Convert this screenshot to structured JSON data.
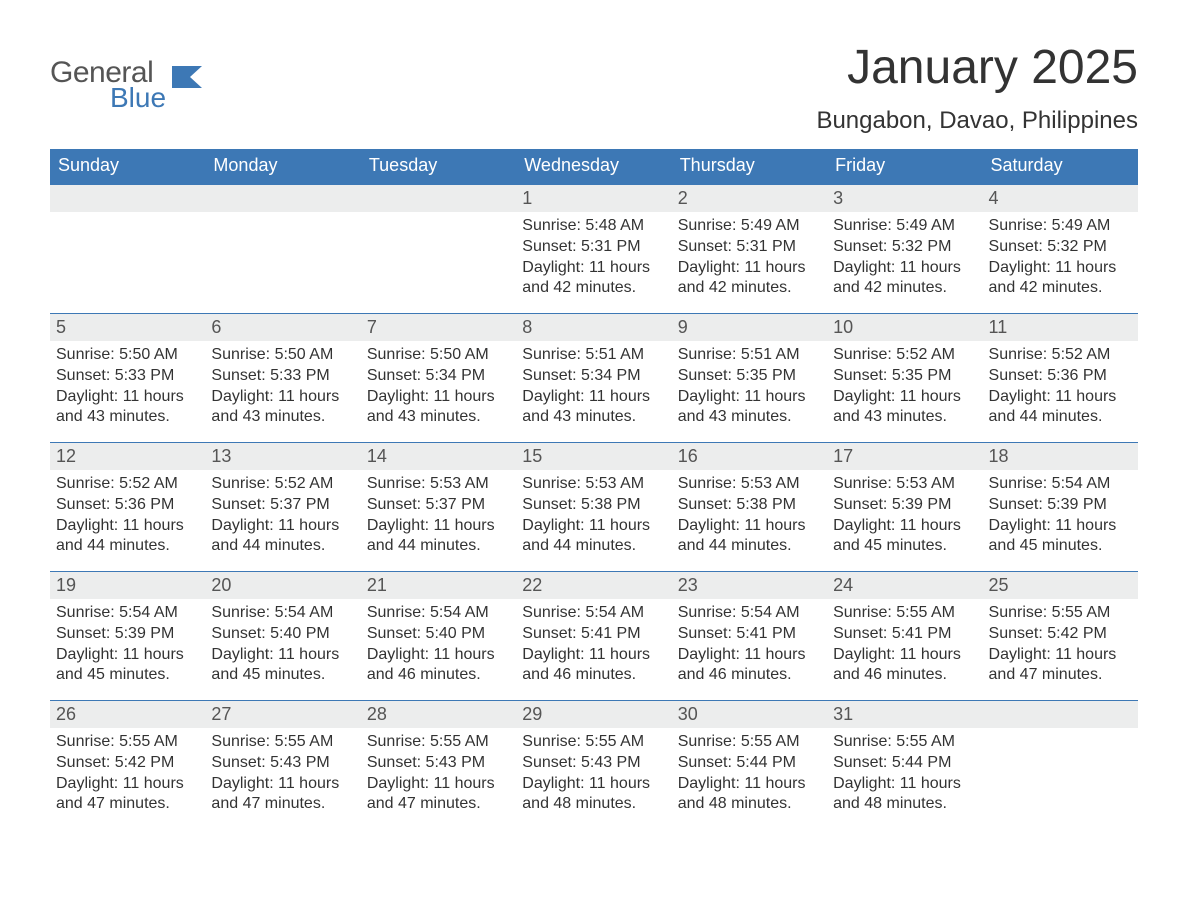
{
  "logo": {
    "general": "General",
    "blue": "Blue"
  },
  "title": "January 2025",
  "location": "Bungabon, Davao, Philippines",
  "colors": {
    "header_blue": "#3d78b5",
    "daynum_bg": "#eceded",
    "text": "#333333",
    "logo_gray": "#555555"
  },
  "weekdays": [
    "Sunday",
    "Monday",
    "Tuesday",
    "Wednesday",
    "Thursday",
    "Friday",
    "Saturday"
  ],
  "weeks": [
    [
      null,
      null,
      null,
      {
        "n": "1",
        "sr": "Sunrise: 5:48 AM",
        "ss": "Sunset: 5:31 PM",
        "dl": "Daylight: 11 hours and 42 minutes."
      },
      {
        "n": "2",
        "sr": "Sunrise: 5:49 AM",
        "ss": "Sunset: 5:31 PM",
        "dl": "Daylight: 11 hours and 42 minutes."
      },
      {
        "n": "3",
        "sr": "Sunrise: 5:49 AM",
        "ss": "Sunset: 5:32 PM",
        "dl": "Daylight: 11 hours and 42 minutes."
      },
      {
        "n": "4",
        "sr": "Sunrise: 5:49 AM",
        "ss": "Sunset: 5:32 PM",
        "dl": "Daylight: 11 hours and 42 minutes."
      }
    ],
    [
      {
        "n": "5",
        "sr": "Sunrise: 5:50 AM",
        "ss": "Sunset: 5:33 PM",
        "dl": "Daylight: 11 hours and 43 minutes."
      },
      {
        "n": "6",
        "sr": "Sunrise: 5:50 AM",
        "ss": "Sunset: 5:33 PM",
        "dl": "Daylight: 11 hours and 43 minutes."
      },
      {
        "n": "7",
        "sr": "Sunrise: 5:50 AM",
        "ss": "Sunset: 5:34 PM",
        "dl": "Daylight: 11 hours and 43 minutes."
      },
      {
        "n": "8",
        "sr": "Sunrise: 5:51 AM",
        "ss": "Sunset: 5:34 PM",
        "dl": "Daylight: 11 hours and 43 minutes."
      },
      {
        "n": "9",
        "sr": "Sunrise: 5:51 AM",
        "ss": "Sunset: 5:35 PM",
        "dl": "Daylight: 11 hours and 43 minutes."
      },
      {
        "n": "10",
        "sr": "Sunrise: 5:52 AM",
        "ss": "Sunset: 5:35 PM",
        "dl": "Daylight: 11 hours and 43 minutes."
      },
      {
        "n": "11",
        "sr": "Sunrise: 5:52 AM",
        "ss": "Sunset: 5:36 PM",
        "dl": "Daylight: 11 hours and 44 minutes."
      }
    ],
    [
      {
        "n": "12",
        "sr": "Sunrise: 5:52 AM",
        "ss": "Sunset: 5:36 PM",
        "dl": "Daylight: 11 hours and 44 minutes."
      },
      {
        "n": "13",
        "sr": "Sunrise: 5:52 AM",
        "ss": "Sunset: 5:37 PM",
        "dl": "Daylight: 11 hours and 44 minutes."
      },
      {
        "n": "14",
        "sr": "Sunrise: 5:53 AM",
        "ss": "Sunset: 5:37 PM",
        "dl": "Daylight: 11 hours and 44 minutes."
      },
      {
        "n": "15",
        "sr": "Sunrise: 5:53 AM",
        "ss": "Sunset: 5:38 PM",
        "dl": "Daylight: 11 hours and 44 minutes."
      },
      {
        "n": "16",
        "sr": "Sunrise: 5:53 AM",
        "ss": "Sunset: 5:38 PM",
        "dl": "Daylight: 11 hours and 44 minutes."
      },
      {
        "n": "17",
        "sr": "Sunrise: 5:53 AM",
        "ss": "Sunset: 5:39 PM",
        "dl": "Daylight: 11 hours and 45 minutes."
      },
      {
        "n": "18",
        "sr": "Sunrise: 5:54 AM",
        "ss": "Sunset: 5:39 PM",
        "dl": "Daylight: 11 hours and 45 minutes."
      }
    ],
    [
      {
        "n": "19",
        "sr": "Sunrise: 5:54 AM",
        "ss": "Sunset: 5:39 PM",
        "dl": "Daylight: 11 hours and 45 minutes."
      },
      {
        "n": "20",
        "sr": "Sunrise: 5:54 AM",
        "ss": "Sunset: 5:40 PM",
        "dl": "Daylight: 11 hours and 45 minutes."
      },
      {
        "n": "21",
        "sr": "Sunrise: 5:54 AM",
        "ss": "Sunset: 5:40 PM",
        "dl": "Daylight: 11 hours and 46 minutes."
      },
      {
        "n": "22",
        "sr": "Sunrise: 5:54 AM",
        "ss": "Sunset: 5:41 PM",
        "dl": "Daylight: 11 hours and 46 minutes."
      },
      {
        "n": "23",
        "sr": "Sunrise: 5:54 AM",
        "ss": "Sunset: 5:41 PM",
        "dl": "Daylight: 11 hours and 46 minutes."
      },
      {
        "n": "24",
        "sr": "Sunrise: 5:55 AM",
        "ss": "Sunset: 5:41 PM",
        "dl": "Daylight: 11 hours and 46 minutes."
      },
      {
        "n": "25",
        "sr": "Sunrise: 5:55 AM",
        "ss": "Sunset: 5:42 PM",
        "dl": "Daylight: 11 hours and 47 minutes."
      }
    ],
    [
      {
        "n": "26",
        "sr": "Sunrise: 5:55 AM",
        "ss": "Sunset: 5:42 PM",
        "dl": "Daylight: 11 hours and 47 minutes."
      },
      {
        "n": "27",
        "sr": "Sunrise: 5:55 AM",
        "ss": "Sunset: 5:43 PM",
        "dl": "Daylight: 11 hours and 47 minutes."
      },
      {
        "n": "28",
        "sr": "Sunrise: 5:55 AM",
        "ss": "Sunset: 5:43 PM",
        "dl": "Daylight: 11 hours and 47 minutes."
      },
      {
        "n": "29",
        "sr": "Sunrise: 5:55 AM",
        "ss": "Sunset: 5:43 PM",
        "dl": "Daylight: 11 hours and 48 minutes."
      },
      {
        "n": "30",
        "sr": "Sunrise: 5:55 AM",
        "ss": "Sunset: 5:44 PM",
        "dl": "Daylight: 11 hours and 48 minutes."
      },
      {
        "n": "31",
        "sr": "Sunrise: 5:55 AM",
        "ss": "Sunset: 5:44 PM",
        "dl": "Daylight: 11 hours and 48 minutes."
      },
      null
    ]
  ]
}
